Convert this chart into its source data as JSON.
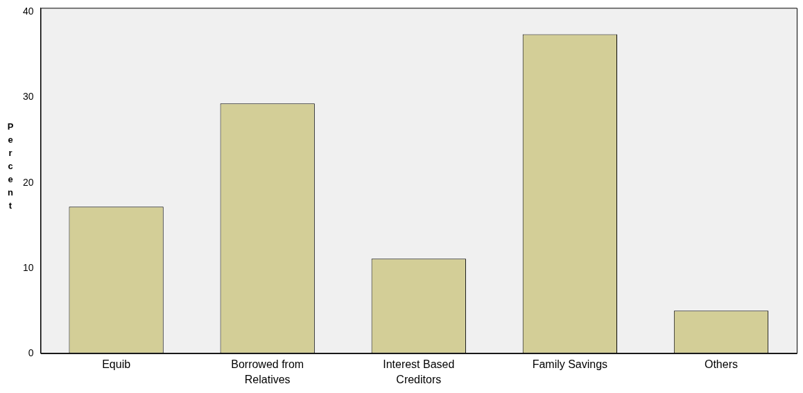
{
  "chart_data": {
    "type": "bar",
    "ylabel": "Percent",
    "categories": [
      "Equib",
      "Borrowed from Relatives",
      "Interest Based Creditors",
      "Family Savings",
      "Others"
    ],
    "values": [
      17.2,
      29.3,
      11.1,
      37.4,
      5.0
    ],
    "color": "#d3ce97",
    "ylim": [
      0,
      40.5
    ],
    "yticks": [
      0,
      10,
      20,
      30,
      40
    ],
    "grid": false,
    "legend": false
  }
}
